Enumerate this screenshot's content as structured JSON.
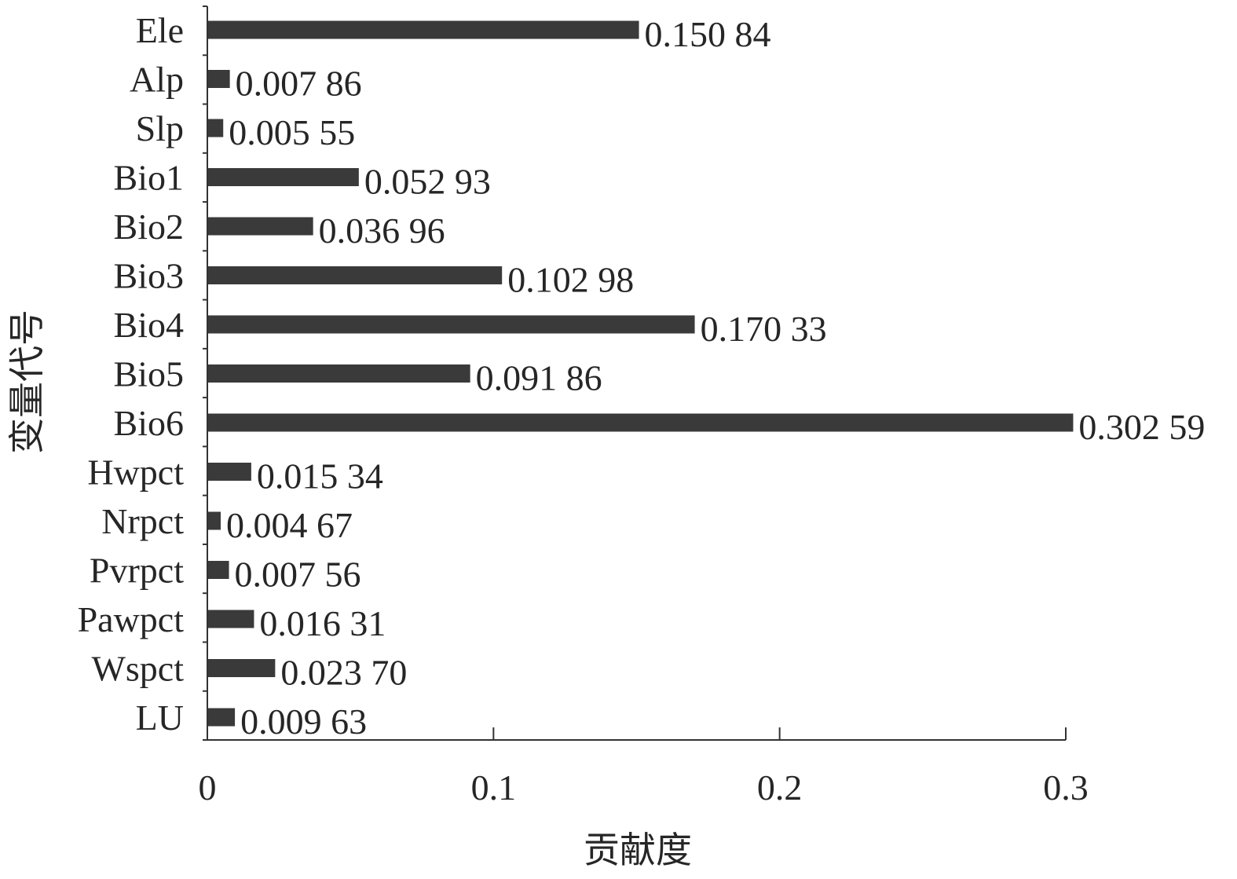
{
  "chart_data": {
    "type": "bar",
    "orientation": "horizontal",
    "title": "",
    "xlabel": "贡献度",
    "ylabel": "变量代号",
    "xlim": [
      0,
      0.3
    ],
    "x_ticks": [
      "0",
      "0.1",
      "0.2",
      "0.3"
    ],
    "grid": false,
    "legend": "none",
    "bar_color": "#3a3a3a",
    "categories": [
      "Ele",
      "Alp",
      "Slp",
      "Bio1",
      "Bio2",
      "Bio3",
      "Bio4",
      "Bio5",
      "Bio6",
      "Hwpct",
      "Nrpct",
      "Pvrpct",
      "Pawpct",
      "Wspct",
      "LU"
    ],
    "values": [
      0.15084,
      0.00786,
      0.00555,
      0.05293,
      0.03696,
      0.10298,
      0.17033,
      0.09186,
      0.30259,
      0.01534,
      0.00467,
      0.00756,
      0.01631,
      0.0237,
      0.00963
    ],
    "data_labels": [
      "0.150 84",
      "0.007 86",
      "0.005 55",
      "0.052 93",
      "0.036 96",
      "0.102 98",
      "0.170 33",
      "0.091 86",
      "0.302 59",
      "0.015 34",
      "0.004 67",
      "0.007 56",
      "0.016 31",
      "0.023 70",
      "0.009 63"
    ]
  }
}
